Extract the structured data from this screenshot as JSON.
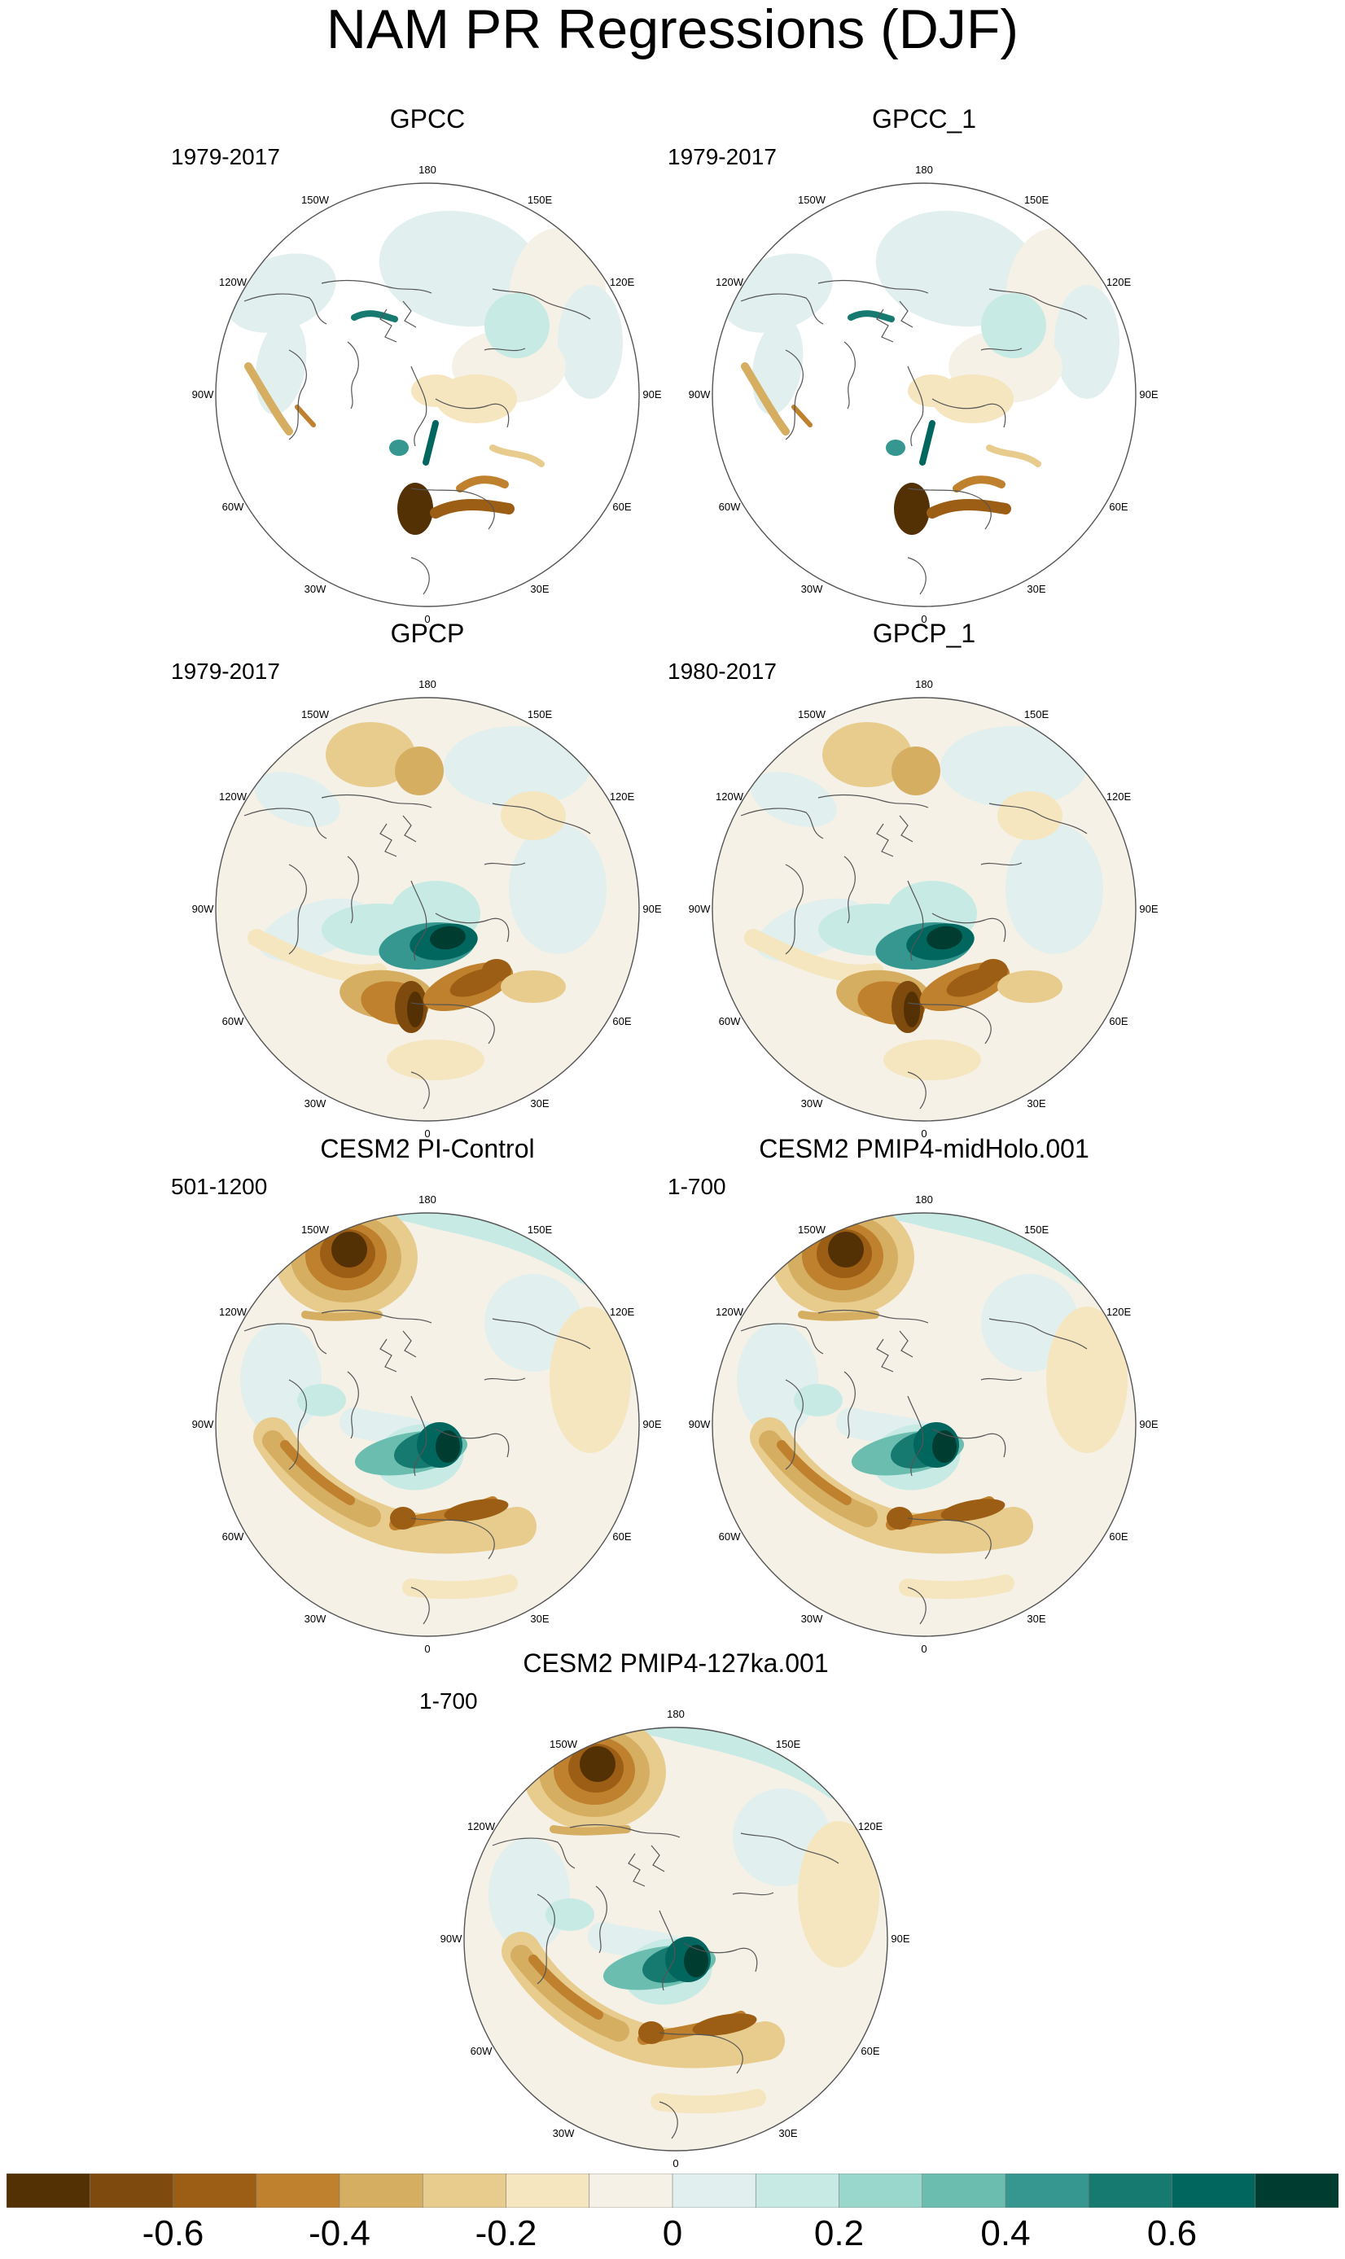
{
  "title": "NAM PR Regressions (DJF)",
  "palette": [
    "#543005",
    "#7f4a0d",
    "#9c5d14",
    "#bf812d",
    "#d6ae62",
    "#e8cc8e",
    "#f5e6c0",
    "#f5f1e6",
    "#e1efee",
    "#c7eae5",
    "#99d7cc",
    "#6bbdb0",
    "#35978f",
    "#167a70",
    "#01665e",
    "#003c30"
  ],
  "lon_labels": [
    "180",
    "150E",
    "120E",
    "90E",
    "60E",
    "30E",
    "0",
    "30W",
    "60W",
    "90W",
    "120W",
    "150W"
  ],
  "panels": [
    {
      "title": "GPCC",
      "period": "1979-2017",
      "kind": "obs_land"
    },
    {
      "title": "GPCC_1",
      "period": "1979-2017",
      "kind": "obs_land"
    },
    {
      "title": "GPCP",
      "period": "1979-2017",
      "kind": "obs_full"
    },
    {
      "title": "GPCP_1",
      "period": "1980-2017",
      "kind": "obs_full"
    },
    {
      "title": "CESM2 PI-Control",
      "period": "501-1200",
      "kind": "model"
    },
    {
      "title": "CESM2 PMIP4-midHolo.001",
      "period": "1-700",
      "kind": "model"
    },
    {
      "title": "CESM2 PMIP4-127ka.001",
      "period": "1-700",
      "kind": "model"
    }
  ],
  "colorbar": {
    "ticks": [
      {
        "label": "-0.6",
        "pos": 0.125
      },
      {
        "label": "-0.4",
        "pos": 0.25
      },
      {
        "label": "-0.2",
        "pos": 0.375
      },
      {
        "label": "0",
        "pos": 0.5
      },
      {
        "label": "0.2",
        "pos": 0.625
      },
      {
        "label": "0.4",
        "pos": 0.75
      },
      {
        "label": "0.6",
        "pos": 0.875
      }
    ]
  }
}
